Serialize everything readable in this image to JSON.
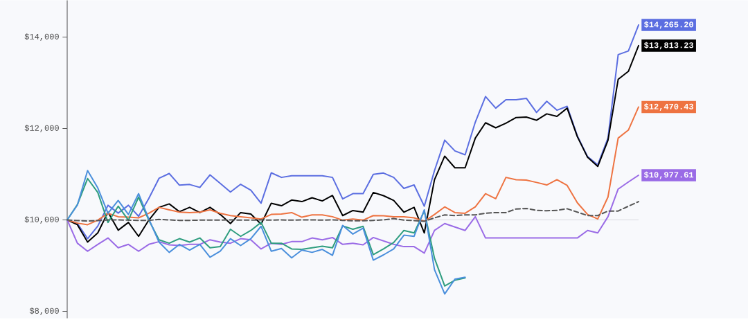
{
  "chart_data": {
    "type": "line",
    "categories": [
      null,
      null,
      null,
      null,
      null,
      null,
      null,
      null,
      null,
      null,
      null,
      null,
      null,
      null,
      null,
      null,
      null,
      null,
      null,
      null,
      null,
      null,
      null,
      null,
      null,
      null,
      null,
      null,
      null,
      null,
      null,
      null,
      null,
      null,
      null,
      null,
      null,
      null,
      null,
      null,
      null,
      null,
      null,
      null,
      null,
      null,
      null,
      null,
      null,
      null,
      null,
      null,
      null,
      null,
      null,
      null,
      null
    ],
    "ylim": [
      7848,
      14803
    ],
    "yticks": [
      {
        "value": 8000,
        "label": "$8,000"
      },
      {
        "value": 10000,
        "label": "$10,000"
      },
      {
        "value": 12000,
        "label": "$12,000"
      },
      {
        "value": 14000,
        "label": "$14,000"
      }
    ],
    "ref_lines": [
      {
        "axis": "y",
        "value": 10000,
        "color": "#d8dadf"
      }
    ],
    "series": [
      {
        "color": "#5b6ee1",
        "values": [
          10000,
          9925,
          9590,
          9865,
          10320,
          10150,
          10320,
          10080,
          10470,
          10910,
          11015,
          10760,
          10775,
          10710,
          10985,
          10800,
          10610,
          10780,
          10650,
          10365,
          11030,
          10930,
          10965,
          10965,
          10965,
          10965,
          10930,
          10460,
          10575,
          10575,
          10995,
          11025,
          10930,
          10690,
          10765,
          10300,
          11080,
          11745,
          11510,
          11425,
          12140,
          12700,
          12445,
          12630,
          12630,
          12660,
          12350,
          12595,
          12400,
          12485,
          11840,
          11385,
          11205,
          11790,
          13615,
          13695,
          14265.2
        ],
        "value_labels": [
          null,
          null,
          null,
          null,
          null,
          null,
          null,
          null,
          null,
          null,
          null,
          null,
          null,
          null,
          null,
          null,
          null,
          null,
          null,
          null,
          null,
          null,
          null,
          null,
          null,
          null,
          null,
          null,
          null,
          null,
          null,
          null,
          null,
          null,
          null,
          null,
          null,
          null,
          null,
          null,
          null,
          null,
          null,
          null,
          null,
          null,
          null,
          null,
          null,
          null,
          null,
          null,
          null,
          null,
          null,
          null,
          "$14,265.20"
        ]
      },
      {
        "color": "#000000",
        "values": [
          10000,
          9895,
          9515,
          9715,
          10170,
          9775,
          9945,
          9640,
          9995,
          10275,
          10350,
          10180,
          10275,
          10160,
          10275,
          10120,
          9920,
          10160,
          10130,
          9910,
          10365,
          10310,
          10435,
          10400,
          10485,
          10415,
          10535,
          10095,
          10205,
          10170,
          10600,
          10530,
          10425,
          10170,
          10275,
          9715,
          10880,
          11395,
          11140,
          11140,
          11790,
          12125,
          12015,
          12115,
          12240,
          12250,
          12180,
          12320,
          12265,
          12445,
          11820,
          11370,
          11170,
          11740,
          13075,
          13250,
          13813.23
        ],
        "value_labels": [
          null,
          null,
          null,
          null,
          null,
          null,
          null,
          null,
          null,
          null,
          null,
          null,
          null,
          null,
          null,
          null,
          null,
          null,
          null,
          null,
          null,
          null,
          null,
          null,
          null,
          null,
          null,
          null,
          null,
          null,
          null,
          null,
          null,
          null,
          null,
          null,
          null,
          null,
          null,
          null,
          null,
          null,
          null,
          null,
          null,
          null,
          null,
          null,
          null,
          null,
          null,
          null,
          null,
          null,
          null,
          null,
          "$13,813.23"
        ]
      },
      {
        "color": "#ee7341",
        "values": [
          10000,
          9930,
          9895,
          9995,
          10145,
          10070,
          10060,
          10045,
          10145,
          10275,
          10220,
          10170,
          10160,
          10170,
          10220,
          10145,
          10095,
          10070,
          10045,
          10020,
          10120,
          10130,
          10160,
          10060,
          10110,
          10110,
          10070,
          9995,
          10020,
          9995,
          10095,
          10090,
          10070,
          10070,
          10045,
          9970,
          10120,
          10285,
          10160,
          10145,
          10285,
          10575,
          10465,
          10930,
          10880,
          10870,
          10820,
          10765,
          10880,
          10755,
          10375,
          10120,
          10020,
          10500,
          11790,
          11965,
          12470.43
        ],
        "value_labels": [
          null,
          null,
          null,
          null,
          null,
          null,
          null,
          null,
          null,
          null,
          null,
          null,
          null,
          null,
          null,
          null,
          null,
          null,
          null,
          null,
          null,
          null,
          null,
          null,
          null,
          null,
          null,
          null,
          null,
          null,
          null,
          null,
          null,
          null,
          null,
          null,
          null,
          null,
          null,
          null,
          null,
          null,
          null,
          null,
          null,
          null,
          null,
          null,
          null,
          null,
          null,
          null,
          null,
          null,
          null,
          null,
          "$12,470.43"
        ]
      },
      {
        "color": "#9a6be6",
        "values": [
          10000,
          9490,
          9315,
          9465,
          9605,
          9390,
          9465,
          9315,
          9465,
          9525,
          9455,
          9440,
          9465,
          9465,
          9565,
          9515,
          9490,
          9590,
          9565,
          9365,
          9490,
          9465,
          9525,
          9525,
          9605,
          9565,
          9615,
          9465,
          9490,
          9455,
          9615,
          9540,
          9465,
          9415,
          9415,
          9275,
          9770,
          9920,
          9845,
          9770,
          10070,
          9605,
          9605,
          9605,
          9605,
          9605,
          9605,
          9605,
          9605,
          9605,
          9605,
          9770,
          9715,
          10070,
          10675,
          10830,
          10977.61
        ],
        "value_labels": [
          null,
          null,
          null,
          null,
          null,
          null,
          null,
          null,
          null,
          null,
          null,
          null,
          null,
          null,
          null,
          null,
          null,
          null,
          null,
          null,
          null,
          null,
          null,
          null,
          null,
          null,
          null,
          null,
          null,
          null,
          null,
          null,
          null,
          null,
          null,
          null,
          null,
          null,
          null,
          null,
          null,
          null,
          null,
          null,
          null,
          null,
          null,
          null,
          null,
          null,
          null,
          null,
          null,
          null,
          null,
          null,
          "$10,977.61"
        ]
      },
      {
        "color": "#2e9d7f",
        "values": [
          10000,
          10335,
          10905,
          10600,
          9945,
          10300,
          9995,
          10500,
          9995,
          9565,
          9490,
          9590,
          9515,
          9605,
          9390,
          9415,
          9795,
          9640,
          9770,
          9945,
          9490,
          9490,
          9365,
          9355,
          9390,
          9425,
          9390,
          9870,
          9795,
          9860,
          9240,
          9365,
          9505,
          9770,
          9715,
          10195,
          9160,
          8555,
          8680,
          8730,
          null,
          null,
          null,
          null,
          null,
          null,
          null,
          null,
          null,
          null,
          null,
          null,
          null,
          null,
          null,
          null,
          null
        ]
      },
      {
        "color": "#4a8fdc",
        "values": [
          10000,
          10325,
          11080,
          10700,
          10145,
          10425,
          10120,
          10575,
          10020,
          9515,
          9290,
          9465,
          9340,
          9465,
          9185,
          9315,
          9590,
          9440,
          9590,
          9860,
          9315,
          9375,
          9170,
          9340,
          9290,
          9355,
          9225,
          9880,
          9690,
          9820,
          9120,
          9235,
          9365,
          9665,
          9640,
          10220,
          8910,
          8380,
          8705,
          8745,
          null,
          null,
          null,
          null,
          null,
          null,
          null,
          null,
          null,
          null,
          null,
          null,
          null,
          null,
          null,
          null,
          null
        ]
      },
      {
        "color": "#555555",
        "line_style": "dashed",
        "values": [
          10000,
          9985,
          9975,
          9985,
          10000,
          10000,
          9995,
          9990,
          9990,
          10010,
          10000,
          9990,
          9990,
          9995,
          9995,
          9995,
          10000,
          9995,
          9995,
          10000,
          9995,
          10000,
          9995,
          10000,
          10000,
          9995,
          10000,
          9990,
          9980,
          9980,
          9990,
          10000,
          10030,
          9995,
          9985,
          9970,
          10045,
          10110,
          10095,
          10110,
          10110,
          10145,
          10160,
          10160,
          10240,
          10250,
          10210,
          10200,
          10210,
          10245,
          10170,
          10095,
          10095,
          10195,
          10195,
          10300,
          10400
        ]
      }
    ]
  }
}
